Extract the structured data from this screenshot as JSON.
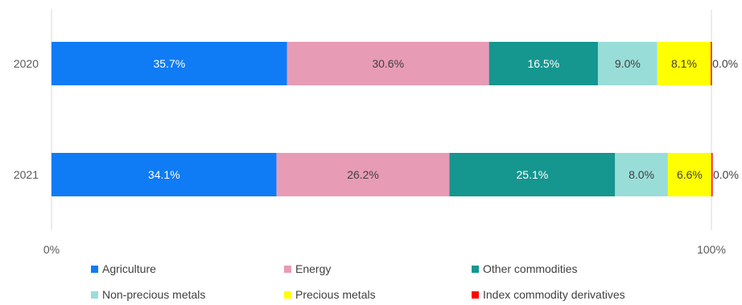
{
  "chart_data": {
    "type": "bar",
    "orientation": "horizontal",
    "stacked": "percent",
    "categories": [
      "2020",
      "2021"
    ],
    "series": [
      {
        "name": "Agriculture",
        "color": "#0F7BF5",
        "values": [
          35.7,
          34.1
        ],
        "labels": [
          "35.7%",
          "34.1%"
        ],
        "label_color": "#ffffff"
      },
      {
        "name": "Energy",
        "color": "#E89BB5",
        "values": [
          30.6,
          26.2
        ],
        "labels": [
          "30.6%",
          "26.2%"
        ],
        "label_color": "#404040"
      },
      {
        "name": "Other commodities",
        "color": "#15968F",
        "values": [
          16.5,
          25.1
        ],
        "labels": [
          "16.5%",
          "25.1%"
        ],
        "label_color": "#ffffff"
      },
      {
        "name": "Non-precious metals",
        "color": "#99DDD9",
        "values": [
          9.0,
          8.0
        ],
        "labels": [
          "9.0%",
          "8.0%"
        ],
        "label_color": "#404040"
      },
      {
        "name": "Precious metals",
        "color": "#FFFF00",
        "values": [
          8.1,
          6.6
        ],
        "labels": [
          "8.1%",
          "6.6%"
        ],
        "label_color": "#404040"
      },
      {
        "name": "Index commodity derivatives",
        "color": "#FF0000",
        "values": [
          0.0,
          0.0
        ],
        "labels": [
          "0.0%",
          "0.0%"
        ],
        "label_color": "#404040"
      }
    ],
    "x_ticks": [
      "0%",
      "100%"
    ],
    "xlim": [
      0,
      100
    ],
    "grid": false,
    "legend": "bottom",
    "title": "",
    "xlabel": "",
    "ylabel": ""
  }
}
